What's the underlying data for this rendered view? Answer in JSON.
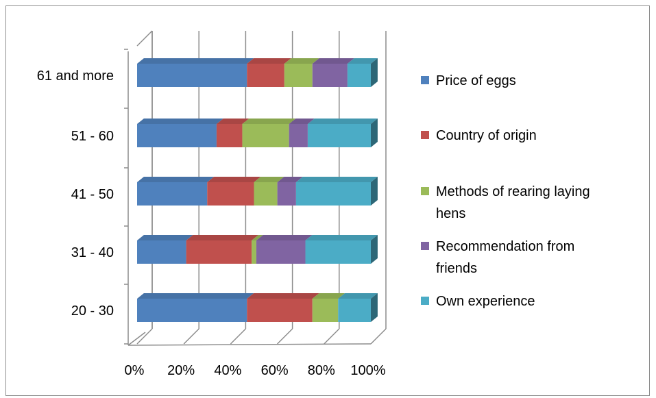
{
  "chart_data": {
    "type": "bar",
    "orientation": "horizontal",
    "stacked": "percent",
    "three_d": true,
    "categories": [
      "20 - 30",
      "31 - 40",
      "41 - 50",
      "51 - 60",
      "61 and more"
    ],
    "x_ticks": [
      "0%",
      "20%",
      "40%",
      "60%",
      "80%",
      "100%"
    ],
    "xlim": [
      0,
      100
    ],
    "grid": "vertical",
    "legend_position": "right",
    "series": [
      {
        "name": "Price of eggs",
        "color": "#4F81BD",
        "values": [
          47,
          21,
          30,
          34,
          47
        ]
      },
      {
        "name": "Country of origin",
        "color": "#C0504D",
        "values": [
          28,
          28,
          20,
          11,
          16
        ]
      },
      {
        "name": "Methods of rearing laying hens",
        "name_lines": [
          "Methods of rearing laying",
          "hens"
        ],
        "color": "#9BBB59",
        "values": [
          11,
          2,
          10,
          20,
          12
        ]
      },
      {
        "name": "Recommendation from friends",
        "name_lines": [
          "Recommendation from",
          "friends"
        ],
        "color": "#8064A2",
        "values": [
          0,
          21,
          8,
          8,
          15
        ]
      },
      {
        "name": "Own experience",
        "color": "#4BACC6",
        "values": [
          14,
          28,
          32,
          27,
          10
        ]
      }
    ]
  }
}
